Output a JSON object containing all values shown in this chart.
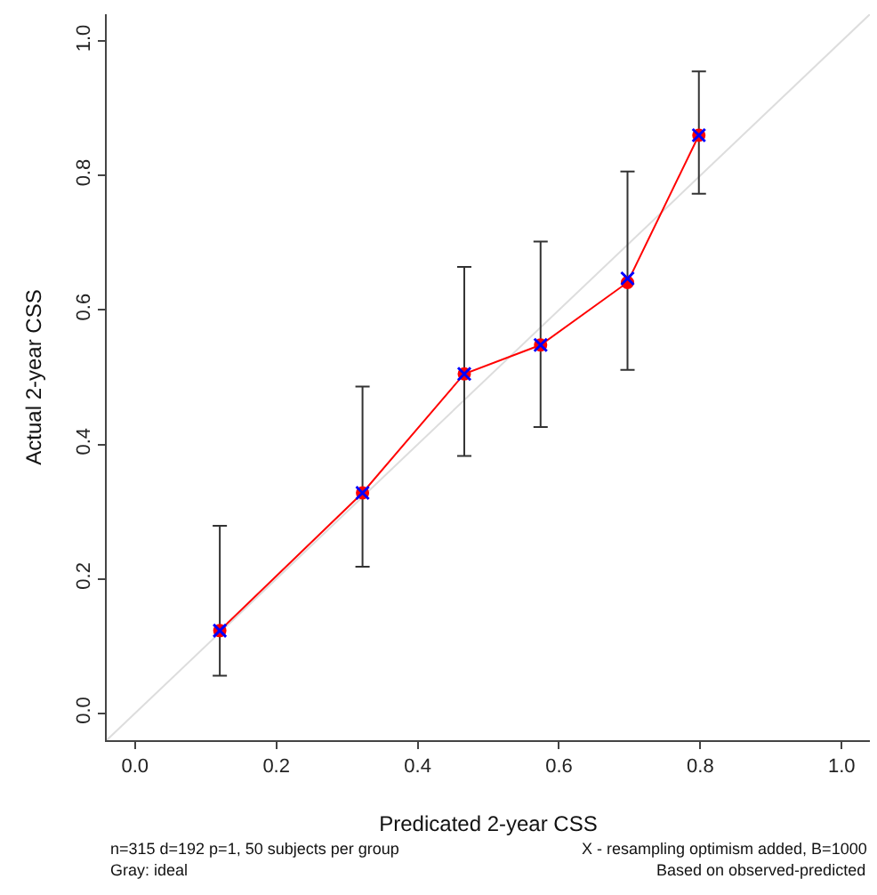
{
  "chart_data": {
    "type": "line",
    "xlabel": "Predicated 2-year CSS",
    "ylabel": "Actual 2-year CSS",
    "x": [
      0.12,
      0.322,
      0.466,
      0.574,
      0.697,
      0.798
    ],
    "series": [
      {
        "color": "#ff0000",
        "marker": "circle",
        "values": [
          0.123,
          0.328,
          0.505,
          0.548,
          0.641,
          0.86
        ],
        "errors": [
          [
            0.056,
            0.279
          ],
          [
            0.218,
            0.486
          ],
          [
            0.383,
            0.664
          ],
          [
            0.426,
            0.702
          ],
          [
            0.511,
            0.806
          ],
          [
            0.773,
            0.955
          ]
        ]
      },
      {
        "type": "scatter",
        "color": "#0000ff",
        "marker": "cross",
        "values": [
          0.123,
          0.328,
          0.505,
          0.548,
          0.647,
          0.86
        ]
      },
      {
        "color": "#dddddd",
        "marker": "none",
        "x": [
          -0.04,
          1.04
        ],
        "values": [
          -0.04,
          1.04
        ]
      }
    ],
    "xlim": [
      -0.04,
      1.04
    ],
    "ylim": [
      -0.04,
      1.04
    ],
    "xticks": [
      {
        "value": 0,
        "label": "0.0"
      },
      0.2,
      0.4,
      0.6,
      0.8,
      {
        "value": 1,
        "label": "1.0"
      }
    ],
    "yticks": [
      {
        "value": 0,
        "label": "0.0"
      },
      0.2,
      0.4,
      0.6,
      0.8,
      {
        "value": 1,
        "label": "1.0"
      }
    ],
    "annotations": [
      "n=315 d=192 p=1, 50 subjects per group",
      "Gray: ideal",
      "X - resampling optimism added, B=1000",
      "Based on observed-predicted"
    ]
  }
}
